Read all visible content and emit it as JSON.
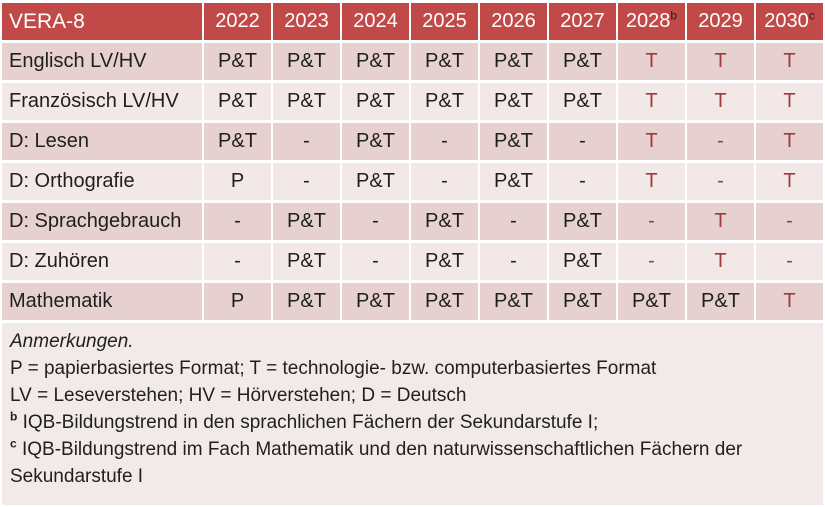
{
  "colors": {
    "header_bg": "#C14A48",
    "header_text": "#FFFFFF",
    "sup_text": "#1F1F1F",
    "band_dark": "#E6D0D0",
    "band_light": "#F2E8E7",
    "notes_bg": "#F2EAE9",
    "text_black": "#1F1F1F",
    "text_red": "#9E3B38"
  },
  "table": {
    "title": "VERA-8",
    "years": [
      {
        "label": "2022",
        "sup": ""
      },
      {
        "label": "2023",
        "sup": ""
      },
      {
        "label": "2024",
        "sup": ""
      },
      {
        "label": "2025",
        "sup": ""
      },
      {
        "label": "2026",
        "sup": ""
      },
      {
        "label": "2027",
        "sup": ""
      },
      {
        "label": "2028",
        "sup": "b"
      },
      {
        "label": "2029",
        "sup": ""
      },
      {
        "label": "2030",
        "sup": "c"
      }
    ],
    "rows": [
      {
        "label": "Englisch LV/HV",
        "band": "dark",
        "cells": [
          {
            "text": "P&T",
            "red": false
          },
          {
            "text": "P&T",
            "red": false
          },
          {
            "text": "P&T",
            "red": false
          },
          {
            "text": "P&T",
            "red": false
          },
          {
            "text": "P&T",
            "red": false
          },
          {
            "text": "P&T",
            "red": false
          },
          {
            "text": "T",
            "red": true
          },
          {
            "text": "T",
            "red": true
          },
          {
            "text": "T",
            "red": true
          }
        ]
      },
      {
        "label": "Französisch LV/HV",
        "band": "light",
        "cells": [
          {
            "text": "P&T",
            "red": false
          },
          {
            "text": "P&T",
            "red": false
          },
          {
            "text": "P&T",
            "red": false
          },
          {
            "text": "P&T",
            "red": false
          },
          {
            "text": "P&T",
            "red": false
          },
          {
            "text": "P&T",
            "red": false
          },
          {
            "text": "T",
            "red": true
          },
          {
            "text": "T",
            "red": true
          },
          {
            "text": "T",
            "red": true
          }
        ]
      },
      {
        "label": "D: Lesen",
        "band": "dark",
        "cells": [
          {
            "text": "P&T",
            "red": false
          },
          {
            "text": "-",
            "red": false
          },
          {
            "text": "P&T",
            "red": false
          },
          {
            "text": "-",
            "red": false
          },
          {
            "text": "P&T",
            "red": false
          },
          {
            "text": "-",
            "red": false
          },
          {
            "text": "T",
            "red": true
          },
          {
            "text": "-",
            "red": true
          },
          {
            "text": "T",
            "red": true
          }
        ]
      },
      {
        "label": "D: Orthografie",
        "band": "light",
        "cells": [
          {
            "text": "P",
            "red": false
          },
          {
            "text": "-",
            "red": false
          },
          {
            "text": "P&T",
            "red": false
          },
          {
            "text": "-",
            "red": false
          },
          {
            "text": "P&T",
            "red": false
          },
          {
            "text": "-",
            "red": false
          },
          {
            "text": "T",
            "red": true
          },
          {
            "text": "-",
            "red": true
          },
          {
            "text": "T",
            "red": true
          }
        ]
      },
      {
        "label": "D: Sprachgebrauch",
        "band": "dark",
        "cells": [
          {
            "text": "-",
            "red": false
          },
          {
            "text": "P&T",
            "red": false
          },
          {
            "text": "-",
            "red": false
          },
          {
            "text": "P&T",
            "red": false
          },
          {
            "text": "-",
            "red": false
          },
          {
            "text": "P&T",
            "red": false
          },
          {
            "text": "-",
            "red": true
          },
          {
            "text": "T",
            "red": true
          },
          {
            "text": "-",
            "red": true
          }
        ]
      },
      {
        "label": "D: Zuhören",
        "band": "light",
        "cells": [
          {
            "text": "-",
            "red": false
          },
          {
            "text": "P&T",
            "red": false
          },
          {
            "text": "-",
            "red": false
          },
          {
            "text": "P&T",
            "red": false
          },
          {
            "text": "-",
            "red": false
          },
          {
            "text": "P&T",
            "red": false
          },
          {
            "text": "-",
            "red": true
          },
          {
            "text": "T",
            "red": true
          },
          {
            "text": "-",
            "red": true
          }
        ]
      },
      {
        "label": "Mathematik",
        "band": "dark",
        "cells": [
          {
            "text": "P",
            "red": false
          },
          {
            "text": "P&T",
            "red": false
          },
          {
            "text": "P&T",
            "red": false
          },
          {
            "text": "P&T",
            "red": false
          },
          {
            "text": "P&T",
            "red": false
          },
          {
            "text": "P&T",
            "red": false
          },
          {
            "text": "P&T",
            "red": false
          },
          {
            "text": "P&T",
            "red": false
          },
          {
            "text": "T",
            "red": true
          }
        ]
      }
    ]
  },
  "notes": {
    "lines": [
      {
        "sup": "",
        "text": "Anmerkungen.",
        "italic": true
      },
      {
        "sup": "",
        "text": "P = papierbasiertes Format; T = technologie- bzw. computerbasiertes Format",
        "italic": false
      },
      {
        "sup": "",
        "text": "LV = Leseverstehen; HV = Hörverstehen; D = Deutsch",
        "italic": false
      },
      {
        "sup": "b",
        "text": "IQB-Bildungstrend in den sprachlichen Fächern der Sekundarstufe I;",
        "italic": false
      },
      {
        "sup": "c",
        "text": "IQB-Bildungstrend im Fach Mathematik und den naturwissenschaftlichen Fächern der Sekundarstufe I",
        "italic": false
      }
    ]
  }
}
